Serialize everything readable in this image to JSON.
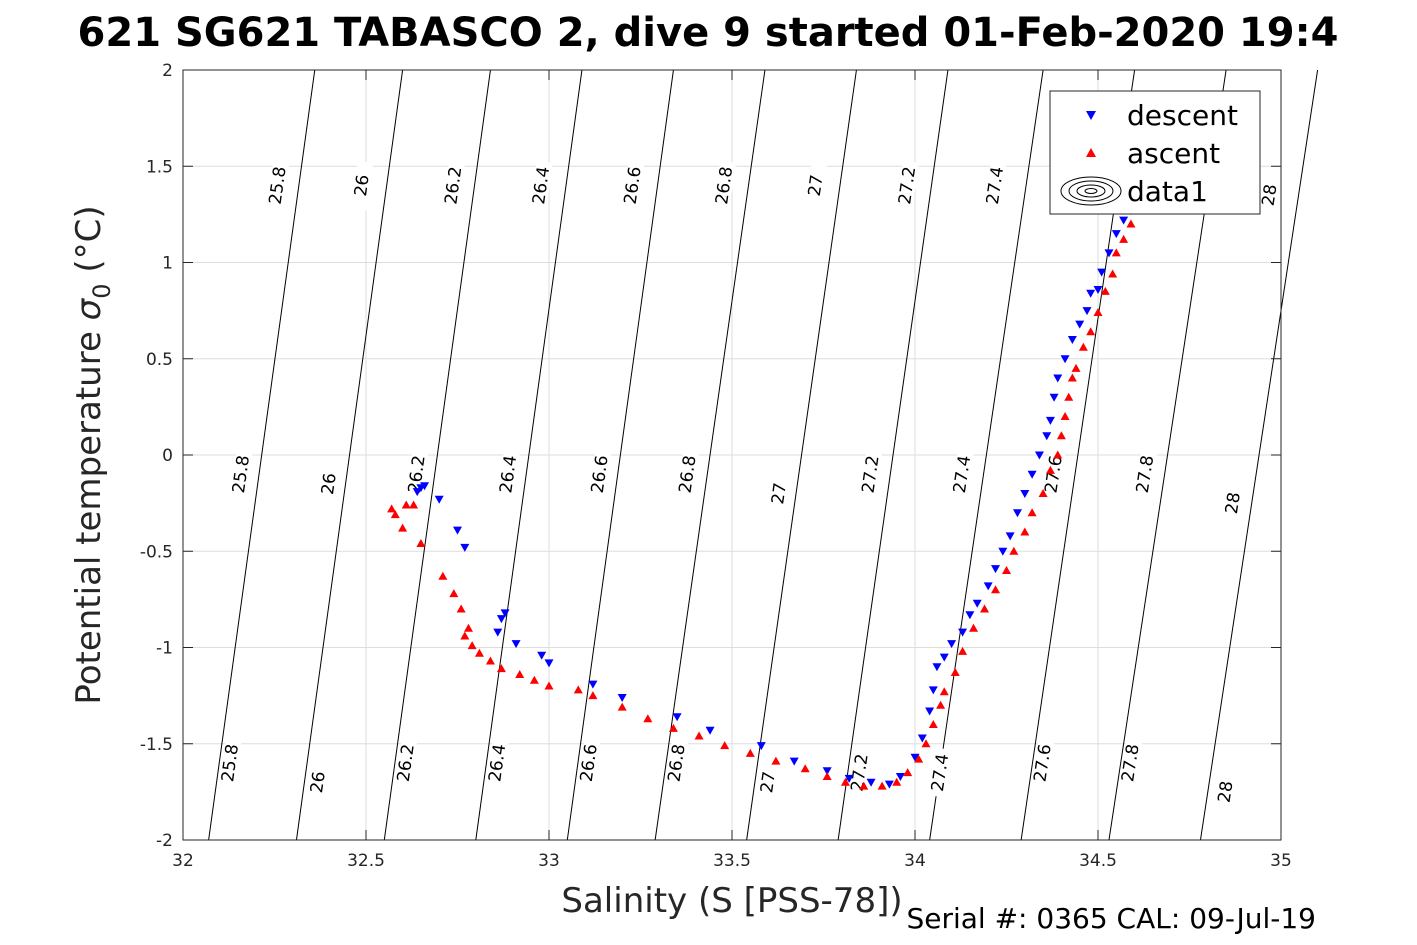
{
  "chart_data": {
    "type": "scatter",
    "title": "621 SG621 TABASCO 2, dive 9 started 01-Feb-2020 19:4",
    "xlabel": "Salinity (S [PSS-78])",
    "ylabel_main": "Potential temperature ",
    "ylabel_symbol": "σ",
    "ylabel_subscript": "0",
    "ylabel_unit": " (°C)",
    "xlim": [
      32,
      35
    ],
    "ylim": [
      -2,
      2
    ],
    "xticks": [
      "32",
      "32.5",
      "33",
      "33.5",
      "34",
      "34.5",
      "35"
    ],
    "yticks": [
      "-2",
      "-1.5",
      "-1",
      "-0.5",
      "0",
      "0.5",
      "1",
      "1.5",
      "2"
    ],
    "xtick_values": [
      32,
      32.5,
      33,
      33.5,
      34,
      34.5,
      35
    ],
    "ytick_values": [
      -2,
      -1.5,
      -1,
      -0.5,
      0,
      0.5,
      1,
      1.5,
      2
    ],
    "grid": true,
    "legend_position": "top-right",
    "legend": [
      "descent",
      "ascent",
      "data1"
    ],
    "footer": "Serial #: 0365  CAL: 09-Jul-19",
    "contours": [
      {
        "label": "25.8",
        "bottom": [
          32.07,
          -2
        ],
        "top": [
          32.36,
          2
        ],
        "label_at": [
          [
            32.13,
            -1.6
          ],
          [
            32.16,
            -0.1
          ],
          [
            32.26,
            1.4
          ]
        ]
      },
      {
        "label": "26",
        "bottom": [
          32.31,
          -2
        ],
        "top": [
          32.6,
          2
        ],
        "label_at": [
          [
            32.37,
            -1.7
          ],
          [
            32.4,
            -0.15
          ],
          [
            32.49,
            1.4
          ]
        ]
      },
      {
        "label": "26.2",
        "bottom": [
          32.55,
          -2
        ],
        "top": [
          32.84,
          2
        ],
        "label_at": [
          [
            32.61,
            -1.6
          ],
          [
            32.64,
            -0.1
          ],
          [
            32.74,
            1.4
          ]
        ]
      },
      {
        "label": "26.4",
        "bottom": [
          32.8,
          -2
        ],
        "top": [
          33.09,
          2
        ],
        "label_at": [
          [
            32.86,
            -1.6
          ],
          [
            32.89,
            -0.1
          ],
          [
            32.98,
            1.4
          ]
        ]
      },
      {
        "label": "26.6",
        "bottom": [
          33.05,
          -2
        ],
        "top": [
          33.34,
          2
        ],
        "label_at": [
          [
            33.11,
            -1.6
          ],
          [
            33.14,
            -0.1
          ],
          [
            33.23,
            1.4
          ]
        ]
      },
      {
        "label": "26.8",
        "bottom": [
          33.29,
          -2
        ],
        "top": [
          33.59,
          2
        ],
        "label_at": [
          [
            33.35,
            -1.6
          ],
          [
            33.38,
            -0.1
          ],
          [
            33.48,
            1.4
          ]
        ]
      },
      {
        "label": "27",
        "bottom": [
          33.54,
          -2
        ],
        "top": [
          33.84,
          2
        ],
        "label_at": [
          [
            33.6,
            -1.7
          ],
          [
            33.63,
            -0.2
          ],
          [
            33.73,
            1.4
          ]
        ]
      },
      {
        "label": "27.2",
        "bottom": [
          33.79,
          -2
        ],
        "top": [
          34.09,
          2
        ],
        "label_at": [
          [
            33.85,
            -1.65
          ],
          [
            33.88,
            -0.1
          ],
          [
            33.98,
            1.4
          ]
        ]
      },
      {
        "label": "27.4",
        "bottom": [
          34.04,
          -2
        ],
        "top": [
          34.35,
          2
        ],
        "label_at": [
          [
            34.07,
            -1.65
          ],
          [
            34.13,
            -0.1
          ],
          [
            34.22,
            1.4
          ]
        ]
      },
      {
        "label": "27.6",
        "bottom": [
          34.29,
          -2
        ],
        "top": [
          34.6,
          2
        ],
        "label_at": [
          [
            34.35,
            -1.6
          ],
          [
            34.38,
            -0.1
          ],
          [
            34.47,
            1.4
          ]
        ]
      },
      {
        "label": "27.8",
        "bottom": [
          34.53,
          -2
        ],
        "top": [
          34.85,
          2
        ],
        "label_at": [
          [
            34.59,
            -1.6
          ],
          [
            34.63,
            -0.1
          ],
          [
            34.72,
            1.4
          ]
        ]
      },
      {
        "label": "28",
        "bottom": [
          34.78,
          -2
        ],
        "top": [
          35.1,
          2
        ],
        "label_at": [
          [
            34.85,
            -1.75
          ],
          [
            34.87,
            -0.25
          ],
          [
            34.97,
            1.35
          ]
        ]
      }
    ],
    "series": [
      {
        "name": "descent",
        "marker": "triangle-down",
        "color": "#0000ff",
        "points": [
          [
            32.65,
            -0.17
          ],
          [
            32.64,
            -0.19
          ],
          [
            32.66,
            -0.16
          ],
          [
            32.7,
            -0.23
          ],
          [
            32.75,
            -0.39
          ],
          [
            32.77,
            -0.48
          ],
          [
            32.87,
            -0.85
          ],
          [
            32.88,
            -0.82
          ],
          [
            32.86,
            -0.92
          ],
          [
            32.91,
            -0.98
          ],
          [
            32.98,
            -1.04
          ],
          [
            33,
            -1.08
          ],
          [
            33.12,
            -1.19
          ],
          [
            33.2,
            -1.26
          ],
          [
            33.35,
            -1.36
          ],
          [
            33.44,
            -1.43
          ],
          [
            33.58,
            -1.51
          ],
          [
            33.67,
            -1.59
          ],
          [
            33.76,
            -1.64
          ],
          [
            33.82,
            -1.68
          ],
          [
            33.88,
            -1.7
          ],
          [
            33.93,
            -1.71
          ],
          [
            33.96,
            -1.67
          ],
          [
            34,
            -1.57
          ],
          [
            34.02,
            -1.47
          ],
          [
            34.04,
            -1.33
          ],
          [
            34.05,
            -1.22
          ],
          [
            34.06,
            -1.1
          ],
          [
            34.08,
            -1.05
          ],
          [
            34.1,
            -0.98
          ],
          [
            34.13,
            -0.92
          ],
          [
            34.15,
            -0.83
          ],
          [
            34.17,
            -0.77
          ],
          [
            34.2,
            -0.68
          ],
          [
            34.22,
            -0.59
          ],
          [
            34.24,
            -0.5
          ],
          [
            34.26,
            -0.42
          ],
          [
            34.28,
            -0.3
          ],
          [
            34.3,
            -0.2
          ],
          [
            34.32,
            -0.1
          ],
          [
            34.34,
            0
          ],
          [
            34.36,
            0.1
          ],
          [
            34.37,
            0.18
          ],
          [
            34.38,
            0.3
          ],
          [
            34.39,
            0.4
          ],
          [
            34.41,
            0.5
          ],
          [
            34.43,
            0.6
          ],
          [
            34.45,
            0.68
          ],
          [
            34.47,
            0.75
          ],
          [
            34.48,
            0.84
          ],
          [
            34.5,
            0.86
          ],
          [
            34.51,
            0.95
          ],
          [
            34.53,
            1.05
          ],
          [
            34.55,
            1.15
          ],
          [
            34.57,
            1.22
          ],
          [
            34.59,
            1.27
          ]
        ]
      },
      {
        "name": "ascent",
        "marker": "triangle-up",
        "color": "#ff0000",
        "points": [
          [
            32.57,
            -0.28
          ],
          [
            32.58,
            -0.31
          ],
          [
            32.61,
            -0.26
          ],
          [
            32.63,
            -0.26
          ],
          [
            32.6,
            -0.38
          ],
          [
            32.65,
            -0.46
          ],
          [
            32.71,
            -0.63
          ],
          [
            32.74,
            -0.72
          ],
          [
            32.76,
            -0.8
          ],
          [
            32.78,
            -0.9
          ],
          [
            32.77,
            -0.94
          ],
          [
            32.79,
            -0.99
          ],
          [
            32.81,
            -1.03
          ],
          [
            32.84,
            -1.07
          ],
          [
            32.87,
            -1.11
          ],
          [
            32.92,
            -1.14
          ],
          [
            32.96,
            -1.17
          ],
          [
            33,
            -1.2
          ],
          [
            33.08,
            -1.22
          ],
          [
            33.12,
            -1.25
          ],
          [
            33.2,
            -1.31
          ],
          [
            33.27,
            -1.37
          ],
          [
            33.34,
            -1.42
          ],
          [
            33.41,
            -1.46
          ],
          [
            33.48,
            -1.51
          ],
          [
            33.55,
            -1.55
          ],
          [
            33.62,
            -1.59
          ],
          [
            33.7,
            -1.63
          ],
          [
            33.76,
            -1.67
          ],
          [
            33.81,
            -1.7
          ],
          [
            33.86,
            -1.72
          ],
          [
            33.91,
            -1.72
          ],
          [
            33.95,
            -1.7
          ],
          [
            33.98,
            -1.65
          ],
          [
            34.01,
            -1.58
          ],
          [
            34.03,
            -1.5
          ],
          [
            34.05,
            -1.4
          ],
          [
            34.07,
            -1.3
          ],
          [
            34.08,
            -1.23
          ],
          [
            34.11,
            -1.13
          ],
          [
            34.13,
            -1.02
          ],
          [
            34.16,
            -0.9
          ],
          [
            34.19,
            -0.8
          ],
          [
            34.22,
            -0.7
          ],
          [
            34.25,
            -0.6
          ],
          [
            34.27,
            -0.5
          ],
          [
            34.3,
            -0.4
          ],
          [
            34.32,
            -0.3
          ],
          [
            34.35,
            -0.2
          ],
          [
            34.37,
            -0.08
          ],
          [
            34.39,
            0
          ],
          [
            34.4,
            0.1
          ],
          [
            34.41,
            0.2
          ],
          [
            34.42,
            0.3
          ],
          [
            34.43,
            0.4
          ],
          [
            34.44,
            0.45
          ],
          [
            34.46,
            0.56
          ],
          [
            34.48,
            0.64
          ],
          [
            34.5,
            0.74
          ],
          [
            34.52,
            0.85
          ],
          [
            34.54,
            0.94
          ],
          [
            34.55,
            1.05
          ],
          [
            34.57,
            1.12
          ],
          [
            34.59,
            1.2
          ],
          [
            34.6,
            1.27
          ]
        ]
      }
    ]
  }
}
